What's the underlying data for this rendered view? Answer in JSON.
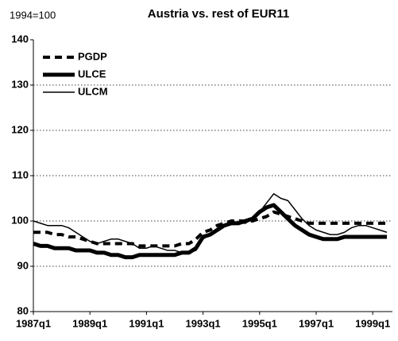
{
  "chart_data": {
    "type": "line",
    "title": "Austria vs. rest of EUR11",
    "subtitle": "1994=100",
    "categories": [
      "1987q1",
      null,
      null,
      null,
      null,
      null,
      null,
      null,
      "1989q1",
      null,
      null,
      null,
      null,
      null,
      null,
      null,
      "1991q1",
      null,
      null,
      null,
      null,
      null,
      null,
      null,
      "1993q1",
      null,
      null,
      null,
      null,
      null,
      null,
      null,
      "1995q1",
      null,
      null,
      null,
      null,
      null,
      null,
      null,
      "1997q1",
      null,
      null,
      null,
      null,
      null,
      null,
      null,
      "1999q1",
      null,
      null
    ],
    "series": [
      {
        "name": "PGDP",
        "color": "#000000",
        "line_style": "dashed",
        "values": [
          97.5,
          97.5,
          97.5,
          97,
          97,
          96.5,
          96.5,
          96,
          95.5,
          95,
          95,
          95,
          95,
          95,
          95,
          94.5,
          94.5,
          94.5,
          94.5,
          94.5,
          94.5,
          95,
          95,
          96,
          97.5,
          98,
          99,
          99.5,
          100,
          100,
          100,
          100,
          100.5,
          101,
          102,
          101.5,
          101,
          100.5,
          100,
          99.5,
          99.5,
          99.5,
          99.5,
          99.5,
          99.5,
          99.5,
          99.5,
          99.5,
          99.5,
          99.5,
          99.5
        ]
      },
      {
        "name": "ULCE",
        "color": "#000000",
        "line_style": "thick",
        "values": [
          95,
          94.5,
          94.5,
          94,
          94,
          94,
          93.5,
          93.5,
          93.5,
          93,
          93,
          92.5,
          92.5,
          92,
          92,
          92.5,
          92.5,
          92.5,
          92.5,
          92.5,
          92.5,
          93,
          93,
          94,
          96.5,
          97,
          98,
          99,
          99.5,
          99.5,
          100,
          100.5,
          102,
          103,
          103.5,
          102,
          100.5,
          99,
          98,
          97,
          96.5,
          96,
          96,
          96,
          96.5,
          96.5,
          96.5,
          96.5,
          96.5,
          96.5,
          96.5
        ]
      },
      {
        "name": "ULCM",
        "color": "#000000",
        "line_style": "thin",
        "values": [
          100,
          99.5,
          99,
          99,
          99,
          98.5,
          97.5,
          96.5,
          95.5,
          95,
          95.5,
          96,
          96,
          95.5,
          95,
          94,
          94,
          94.5,
          94,
          93.5,
          93.5,
          93,
          93,
          93.5,
          96,
          97,
          98,
          99,
          100,
          99.5,
          99.5,
          100.5,
          102,
          104,
          106,
          105,
          104.5,
          102.5,
          100.5,
          99,
          98,
          97.5,
          97,
          97,
          97.5,
          98.5,
          99,
          99,
          98.5,
          98,
          97.5
        ]
      }
    ],
    "ylim": [
      80,
      140
    ],
    "yticks": [
      80,
      90,
      100,
      110,
      120,
      130,
      140
    ],
    "grid": true,
    "legend": "upper left"
  }
}
